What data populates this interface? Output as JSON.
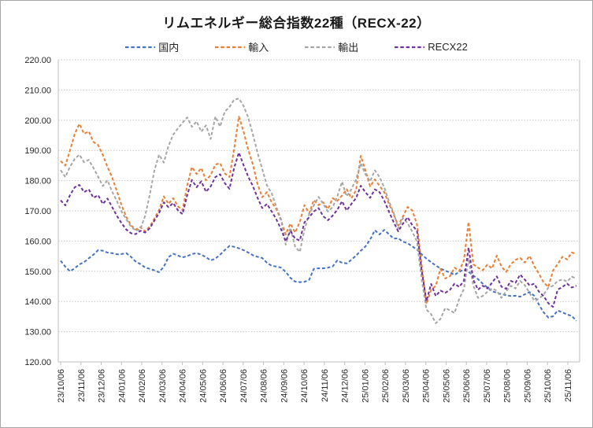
{
  "chart_data": {
    "type": "line",
    "title": "リムエネルギー総合指数22種（RECX-22）",
    "legend_position": "top",
    "grid": "horizontal-dotted",
    "ylim": [
      120,
      220
    ],
    "y_tick_step": 10,
    "y_tick_labels": [
      "220.00",
      "210.00",
      "200.00",
      "190.00",
      "180.00",
      "170.00",
      "160.00",
      "150.00",
      "140.00",
      "130.00",
      "120.00"
    ],
    "x_labels": [
      "23/10/06",
      "23/11/06",
      "23/12/06",
      "24/01/06",
      "24/02/06",
      "24/03/06",
      "24/04/06",
      "24/05/06",
      "24/06/06",
      "24/07/06",
      "24/08/06",
      "24/09/06",
      "24/10/06",
      "24/11/06",
      "24/12/06",
      "25/01/06",
      "25/02/06",
      "25/03/06",
      "25/04/06",
      "25/05/06",
      "25/06/06",
      "25/07/06",
      "25/08/06",
      "25/09/06",
      "25/10/06",
      "25/11/06"
    ],
    "series": [
      {
        "key": "domestic",
        "name": "国内",
        "color": "#4472C4",
        "dash": "dashed",
        "values": [
          153.5,
          151.5,
          150.0,
          151.0,
          152.3,
          153.0,
          154.3,
          155.5,
          157.0,
          156.8,
          156.2,
          156.0,
          155.6,
          155.7,
          156.0,
          154.8,
          153.2,
          152.4,
          151.3,
          150.8,
          150.3,
          149.7,
          151.5,
          154.7,
          155.8,
          155.2,
          154.6,
          155.0,
          155.7,
          156.0,
          155.5,
          154.7,
          153.6,
          154.2,
          155.5,
          157.0,
          158.4,
          158.1,
          157.6,
          157.0,
          156.2,
          155.3,
          154.8,
          154.4,
          152.8,
          151.8,
          151.6,
          151.2,
          149.8,
          147.8,
          146.6,
          146.4,
          146.5,
          147.2,
          150.8,
          151.0,
          151.0,
          151.2,
          151.6,
          153.6,
          152.8,
          152.6,
          153.8,
          155.2,
          156.8,
          158.2,
          160.5,
          163.6,
          162.2,
          163.7,
          162.3,
          160.8,
          160.9,
          159.8,
          159.3,
          158.2,
          157.2,
          155.6,
          154.2,
          153.0,
          151.9,
          150.9,
          150.2,
          149.6,
          148.8,
          149.8,
          150.6,
          149.8,
          148.6,
          147.4,
          145.9,
          144.6,
          143.4,
          142.9,
          142.4,
          142.1,
          141.8,
          141.9,
          141.6,
          142.4,
          143.1,
          141.9,
          138.9,
          136.4,
          134.7,
          135.1,
          137.0,
          136.4,
          135.7,
          135.2,
          133.6
        ]
      },
      {
        "key": "import",
        "name": "輸入",
        "color": "#ED7D31",
        "dash": "dashed",
        "values": [
          186.5,
          185.0,
          190.0,
          195.5,
          198.8,
          195.5,
          196.3,
          192.8,
          191.8,
          188.5,
          184.5,
          181.0,
          176.5,
          171.8,
          168.0,
          165.2,
          163.8,
          164.6,
          163.2,
          164.8,
          167.5,
          170.3,
          174.8,
          172.3,
          174.2,
          171.5,
          170.2,
          178.5,
          184.5,
          182.2,
          184.2,
          180.1,
          181.8,
          185.3,
          185.8,
          182.4,
          181.2,
          190.5,
          201.2,
          196.3,
          190.2,
          185.4,
          178.8,
          174.5,
          176.2,
          172.8,
          170.6,
          166.8,
          162.2,
          165.8,
          162.8,
          166.3,
          171.9,
          169.2,
          173.6,
          171.9,
          172.8,
          170.6,
          174.2,
          173.3,
          175.1,
          177.2,
          174.2,
          176.8,
          188.2,
          183.4,
          178.1,
          180.4,
          178.3,
          176.2,
          172.4,
          168.9,
          165.1,
          168.2,
          171.3,
          170.1,
          165.5,
          152.0,
          139.2,
          143.8,
          145.2,
          150.8,
          147.6,
          148.3,
          151.2,
          150.1,
          153.6,
          166.3,
          152.3,
          151.2,
          150.3,
          152.2,
          150.9,
          155.2,
          151.6,
          149.8,
          152.3,
          153.8,
          154.4,
          152.9,
          155.1,
          151.7,
          149.2,
          146.3,
          144.8,
          150.2,
          152.4,
          154.8,
          153.9,
          156.2,
          155.8
        ]
      },
      {
        "key": "export",
        "name": "輸出",
        "color": "#A5A5A5",
        "dash": "dashed",
        "values": [
          183.5,
          181.2,
          184.6,
          187.2,
          188.6,
          186.1,
          186.9,
          184.2,
          181.3,
          178.2,
          180.1,
          176.3,
          173.2,
          169.8,
          167.2,
          164.8,
          163.4,
          163.9,
          168.3,
          175.2,
          183.4,
          188.6,
          186.0,
          191.5,
          195.2,
          197.3,
          199.2,
          200.9,
          197.8,
          199.6,
          196.2,
          198.3,
          193.8,
          201.2,
          197.9,
          202.8,
          204.4,
          206.8,
          207.2,
          204.8,
          200.9,
          195.3,
          189.2,
          183.8,
          178.4,
          175.8,
          171.3,
          167.2,
          158.8,
          164.4,
          158.2,
          156.4,
          163.8,
          168.9,
          171.8,
          174.6,
          172.3,
          169.8,
          171.2,
          174.8,
          179.6,
          174.8,
          177.2,
          180.3,
          185.8,
          182.1,
          179.8,
          183.4,
          181.2,
          177.8,
          173.2,
          169.4,
          164.2,
          167.6,
          165.9,
          163.1,
          159.8,
          147.2,
          137.3,
          135.8,
          132.8,
          134.2,
          137.8,
          137.1,
          136.2,
          140.8,
          144.2,
          154.2,
          145.3,
          141.2,
          141.8,
          143.2,
          144.3,
          143.6,
          141.2,
          143.4,
          145.2,
          144.3,
          146.8,
          145.4,
          142.8,
          140.3,
          140.9,
          142.3,
          144.6,
          145.2,
          146.8,
          147.3,
          146.6,
          148.2,
          147.6
        ]
      },
      {
        "key": "recx22",
        "name": "RECX22",
        "color": "#7030A0",
        "dash": "dashed",
        "values": [
          173.5,
          171.8,
          175.2,
          177.8,
          178.6,
          176.2,
          177.1,
          174.3,
          175.2,
          172.3,
          174.1,
          171.2,
          168.3,
          165.9,
          163.8,
          162.6,
          162.3,
          163.4,
          162.8,
          164.2,
          166.8,
          169.3,
          172.8,
          171.2,
          172.6,
          170.2,
          168.9,
          175.3,
          180.2,
          177.8,
          179.8,
          176.3,
          178.1,
          181.2,
          182.1,
          179.2,
          177.3,
          184.2,
          189.3,
          185.2,
          181.3,
          178.2,
          174.3,
          170.9,
          172.3,
          169.8,
          167.2,
          163.9,
          159.9,
          163.4,
          160.8,
          160.2,
          166.2,
          167.9,
          169.8,
          170.9,
          168.2,
          166.9,
          168.4,
          170.3,
          173.2,
          170.1,
          172.3,
          174.2,
          178.3,
          176.2,
          174.3,
          177.1,
          176.2,
          173.4,
          169.8,
          166.3,
          163.2,
          165.8,
          167.9,
          165.2,
          163.4,
          150.2,
          140.1,
          145.8,
          141.8,
          143.6,
          142.9,
          143.8,
          145.9,
          144.8,
          146.9,
          157.8,
          147.2,
          143.9,
          145.2,
          144.3,
          146.2,
          148.3,
          144.9,
          144.2,
          146.8,
          146.2,
          148.9,
          147.2,
          145.3,
          145.9,
          143.2,
          141.8,
          139.4,
          138.2,
          143.9,
          144.8,
          145.9,
          144.6,
          145.2
        ]
      }
    ],
    "colors": {
      "grid": "#c6c6c6",
      "axis": "#bfbfbf",
      "text": "#262626",
      "title": "#1a1a1a"
    }
  }
}
